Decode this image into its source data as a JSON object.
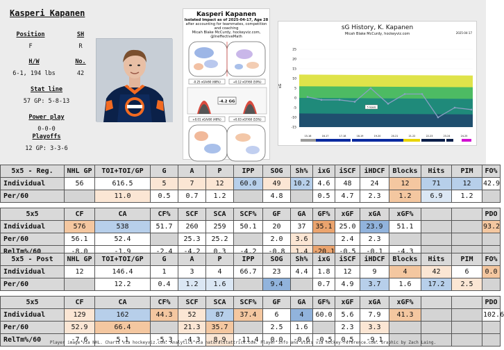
{
  "player": {
    "name": "Kasperi Kapanen",
    "position_label": "Position",
    "position": "F",
    "shoots_label": "SH",
    "shoots": "R",
    "hw_label": "H/W",
    "hw": "6-1, 194 lbs",
    "number_label": "No.",
    "number": "42",
    "statline_label": "Stat line",
    "statline": "57 GP: 5-8-13",
    "powerplay_label": "Power play",
    "powerplay": "0-0-0",
    "playoffs_label": "Playoffs",
    "playoffs": "12 GP: 3-3-6"
  },
  "impact_card": {
    "title": "Kasperi Kapanen",
    "subtitle": "Isolated Impact as of 2025-04-17, Age 28",
    "sub2": "after accounting for teammates, competition and coaching",
    "sub3": "Micah Blake McCurdy, hockeyviz.com, @IneffectiveMath",
    "center_value": "-4.2 GG",
    "left_value": "-0.25 xGA/60 (68%)",
    "right_value": "+0.12 xGF/60 (59%)",
    "bottom_left": "+0.01 xGA/60 (48%)",
    "bottom_right": "+0.03 xGF/60 (55%)"
  },
  "history": {
    "title": "sG History, K. Kapanen",
    "subtitle": "Micah Blake McCurdy, hockeyviz.com",
    "date": "2025-04-17",
    "ylabel": "sG",
    "yticks": [
      "25",
      "20",
      "15",
      "10",
      "5",
      "0",
      "-5",
      "-10",
      "-15"
    ],
    "seasons": [
      "15-16",
      "16-17",
      "17-18",
      "18-19",
      "19-20",
      "20-21",
      "21-22",
      "22-23",
      "23-24",
      "24-25"
    ],
    "value_label": "5 Goals",
    "colors": {
      "band_yellow": "#dfe34a",
      "band_green": "#4dbb63",
      "band_teal": "#1f8a7a",
      "band_dark": "#1f4f6e",
      "line": "#8aa0c4",
      "team_blue": "#0a2aa0",
      "team_yellow": "#e8d400",
      "team_magenta": "#d10fd1",
      "team_navy": "#0b1f4a"
    }
  },
  "tables": {
    "reg": {
      "headers": [
        "5x5 - Reg.",
        "NHL GP",
        "TOI+TOI/GP",
        "G",
        "A",
        "P",
        "IPP",
        "SOG",
        "Sh%",
        "ixG",
        "iSCF",
        "iHDCF",
        "Blocks",
        "Hits",
        "PIM",
        "FO%"
      ],
      "rows": [
        [
          "Individual",
          "56",
          "616.5",
          "5",
          "7",
          "12",
          "60.0",
          "49",
          "10.2",
          "4.6",
          "48",
          "24",
          "12",
          "71",
          "12",
          "42.9"
        ],
        [
          "Per/60",
          "",
          "11.0",
          "0.5",
          "0.7",
          "1.2",
          "",
          "4.8",
          "",
          "0.5",
          "4.7",
          "2.3",
          "1.2",
          "6.9",
          "1.2",
          ""
        ]
      ]
    },
    "reg_adv": {
      "headers": [
        "5x5",
        "CF",
        "CA",
        "CF%",
        "SCF",
        "SCA",
        "SCF%",
        "GF",
        "GA",
        "GF%",
        "xGF",
        "xGA",
        "xGF%",
        "",
        "",
        "PDO"
      ],
      "rows": [
        [
          "Individual",
          "576",
          "538",
          "51.7",
          "260",
          "259",
          "50.1",
          "20",
          "37",
          "35.1",
          "25.0",
          "23.9",
          "51.1",
          "",
          "",
          "93.2"
        ],
        [
          "Per/60",
          "56.1",
          "52.4",
          "",
          "25.3",
          "25.2",
          "",
          "2.0",
          "3.6",
          "",
          "2.4",
          "2.3",
          "",
          "",
          "",
          ""
        ],
        [
          "RelTm%/60",
          "-8.0",
          "-1.9",
          "-2.4",
          "-4.2",
          "0.3",
          "-4.2",
          "-0.8",
          "1.4",
          "-20.1",
          "-0.5",
          "-0.1",
          "-4.3",
          "",
          "",
          ""
        ]
      ]
    },
    "post": {
      "headers": [
        "5x5 - Post",
        "NHL GP",
        "TOI+TOI/GP",
        "G",
        "A",
        "P",
        "IPP",
        "SOG",
        "Sh%",
        "ixG",
        "iSCF",
        "iHDCF",
        "Blocks",
        "Hits",
        "PIM",
        "FO%"
      ],
      "rows": [
        [
          "Individual",
          "12",
          "146.4",
          "1",
          "3",
          "4",
          "66.7",
          "23",
          "4.4",
          "1.8",
          "12",
          "9",
          "4",
          "42",
          "6",
          "0.0"
        ],
        [
          "Per/60",
          "",
          "12.2",
          "0.4",
          "1.2",
          "1.6",
          "",
          "9.4",
          "",
          "0.7",
          "4.9",
          "3.7",
          "1.6",
          "17.2",
          "2.5",
          ""
        ]
      ]
    },
    "post_adv": {
      "headers": [
        "5x5",
        "CF",
        "CA",
        "CF%",
        "SCF",
        "SCA",
        "SCF%",
        "GF",
        "GA",
        "GF%",
        "xGF",
        "xGA",
        "xGF%",
        "",
        "",
        "PDO"
      ],
      "rows": [
        [
          "Individual",
          "129",
          "162",
          "44.3",
          "52",
          "87",
          "37.4",
          "6",
          "4",
          "60.0",
          "5.6",
          "7.9",
          "41.3",
          "",
          "",
          "102.6"
        ],
        [
          "Per/60",
          "52.9",
          "66.4",
          "",
          "21.3",
          "35.7",
          "",
          "2.5",
          "1.6",
          "",
          "2.3",
          "3.3",
          "",
          "",
          "",
          ""
        ],
        [
          "RelTm%/60",
          "-7.6",
          "5.1",
          "-5.3",
          "-4.3",
          "8.9",
          "-11.4",
          "0.0",
          "-0.6",
          "-0.5",
          "0.5",
          "-9.1",
          "",
          "",
          "",
          ""
        ]
      ]
    }
  },
  "footer": "Player image via NHL. Charts via hockeyviz.com. Analytics via naturalstattrick.com. Player info and stats via hockey-reference.com. Graphic by Zach Laing."
}
